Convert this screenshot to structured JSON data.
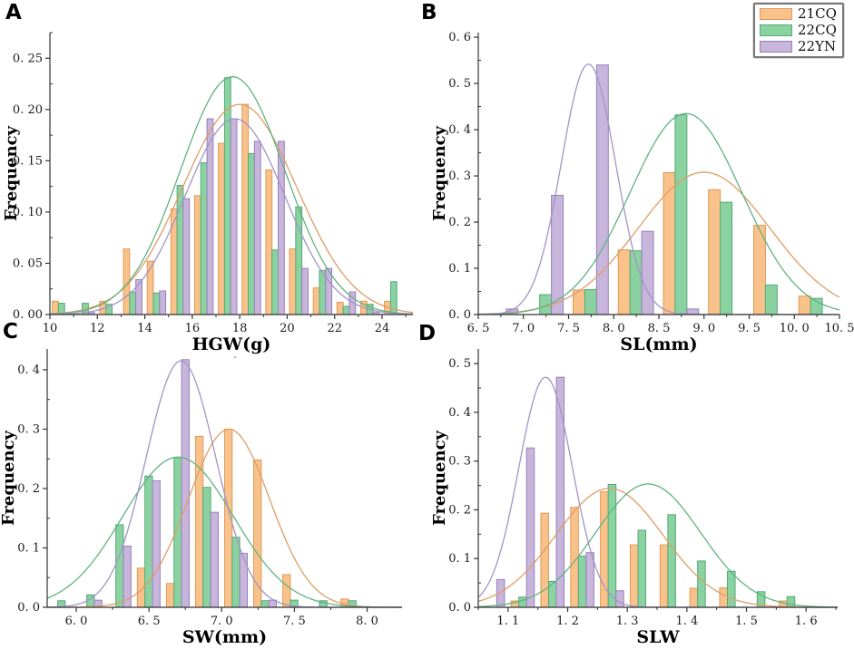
{
  "figure": {
    "background": "#ffffff"
  },
  "legend": {
    "entries": [
      {
        "label": "21CQ",
        "series": "21CQ"
      },
      {
        "label": "22CQ",
        "series": "22CQ"
      },
      {
        "label": "22YN",
        "series": "22YN"
      }
    ]
  },
  "colors": {
    "21CQ": {
      "fill": "#F9C28A",
      "stroke": "#DE9A5B",
      "line": "#E09C64"
    },
    "22CQ": {
      "fill": "#8AD3A1",
      "stroke": "#55A878",
      "line": "#61B282"
    },
    "22YN": {
      "fill": "#C8B5DC",
      "stroke": "#9680BA",
      "line": "#A294C8"
    },
    "axis": "#333333",
    "text": "#1a1a1a"
  },
  "chart_data": [
    {
      "type": "bar",
      "letter": "A",
      "xlabel": "HGW(g)",
      "xlabel_note": "-",
      "ylabel": "Frequency",
      "xlim": [
        10,
        25.3
      ],
      "ylim": [
        0,
        0.275
      ],
      "bin_width": 1,
      "bin_left_edges": [
        10,
        11,
        12,
        13,
        14,
        15,
        16,
        17,
        18,
        19,
        20,
        21,
        22,
        23,
        24
      ],
      "series": [
        {
          "name": "21CQ",
          "values": [
            0.013,
            0,
            0.013,
            0.064,
            0.052,
            0.103,
            0.116,
            0.167,
            0.205,
            0.141,
            0.064,
            0.026,
            0.012,
            0.013,
            0.013
          ]
        },
        {
          "name": "22CQ",
          "values": [
            0.011,
            0.011,
            0.01,
            0.022,
            0.021,
            0.126,
            0.148,
            0.231,
            0.157,
            0.063,
            0.105,
            0.043,
            0.008,
            0.01,
            0.032
          ]
        },
        {
          "name": "22YN",
          "values": [
            0,
            0.002,
            0,
            0.034,
            0.023,
            0.113,
            0.191,
            0.191,
            0.169,
            0.169,
            0.045,
            0.045,
            0.022,
            0.002,
            0
          ]
        }
      ],
      "curves": [
        {
          "name": "21CQ",
          "mean": 18.0,
          "sigma": 2.4,
          "peak": 0.205
        },
        {
          "name": "22CQ",
          "mean": 17.7,
          "sigma": 2.2,
          "peak": 0.232
        },
        {
          "name": "22YN",
          "mean": 17.8,
          "sigma": 2.1,
          "peak": 0.191
        }
      ],
      "xticks": {
        "values": [
          10,
          12,
          14,
          16,
          18,
          20,
          22,
          24
        ],
        "labels": [
          "10",
          "12",
          "14",
          "16",
          "18",
          "20",
          "22",
          "24"
        ]
      },
      "yticks": {
        "values": [
          0,
          0.05,
          0.1,
          0.15,
          0.2,
          0.25
        ],
        "labels": [
          "0. 00",
          "0. 05",
          "0. 10",
          "0. 15",
          "0. 20",
          "0. 25"
        ]
      }
    },
    {
      "type": "bar",
      "letter": "B",
      "xlabel": "SL(mm)",
      "xlabel_note": "",
      "ylabel": "Frequency",
      "xlim": [
        6.5,
        10.5
      ],
      "ylim": [
        0,
        0.61
      ],
      "bin_width": 0.5,
      "bin_left_edges": [
        6.5,
        7.0,
        7.5,
        8.0,
        8.5,
        9.0,
        9.5,
        10.0
      ],
      "series": [
        {
          "name": "21CQ",
          "values": [
            0,
            0,
            0.053,
            0.14,
            0.307,
            0.27,
            0.193,
            0.04
          ]
        },
        {
          "name": "22CQ",
          "values": [
            0,
            0.043,
            0.054,
            0.138,
            0.432,
            0.243,
            0.064,
            0.035
          ]
        },
        {
          "name": "22YN",
          "values": [
            0.012,
            0.258,
            0.54,
            0.18,
            0.012,
            0,
            0,
            0
          ]
        }
      ],
      "curves": [
        {
          "name": "21CQ",
          "mean": 9.0,
          "sigma": 0.73,
          "peak": 0.308
        },
        {
          "name": "22CQ",
          "mean": 8.8,
          "sigma": 0.62,
          "peak": 0.435
        },
        {
          "name": "22YN",
          "mean": 7.72,
          "sigma": 0.3,
          "peak": 0.542
        }
      ],
      "xticks": {
        "values": [
          6.5,
          7.0,
          7.5,
          8.0,
          8.5,
          9.0,
          9.5,
          10.0,
          10.5
        ],
        "labels": [
          "6. 5",
          "7. 0",
          "7. 5",
          "8. 0",
          "8. 5",
          "9. 0",
          "9. 5",
          "10. 0",
          "10. 5"
        ]
      },
      "yticks": {
        "values": [
          0,
          0.1,
          0.2,
          0.3,
          0.4,
          0.5,
          0.6
        ],
        "labels": [
          "0. 0",
          "0. 1",
          "0. 2",
          "0. 3",
          "0. 4",
          "0. 5",
          "0. 6"
        ]
      }
    },
    {
      "type": "bar",
      "letter": "C",
      "xlabel": "SW(mm)",
      "xlabel_note": "",
      "ylabel": "Frequency",
      "xlim": [
        5.8,
        8.24
      ],
      "ylim": [
        0,
        0.435
      ],
      "bin_width": 0.2,
      "bin_left_edges": [
        5.8,
        6.0,
        6.2,
        6.4,
        6.6,
        6.8,
        7.0,
        7.2,
        7.4,
        7.6,
        7.8
      ],
      "series": [
        {
          "name": "21CQ",
          "values": [
            0,
            0,
            0,
            0.066,
            0.04,
            0.288,
            0.3,
            0.248,
            0.055,
            0,
            0.014
          ]
        },
        {
          "name": "22CQ",
          "values": [
            0.011,
            0.021,
            0.139,
            0.221,
            0.252,
            0.202,
            0.118,
            0.011,
            0.012,
            0.011,
            0.011
          ]
        },
        {
          "name": "22YN",
          "values": [
            0,
            0.012,
            0.103,
            0.213,
            0.417,
            0.16,
            0.091,
            0.012,
            0,
            0,
            0
          ]
        }
      ],
      "curves": [
        {
          "name": "21CQ",
          "mean": 7.05,
          "sigma": 0.28,
          "peak": 0.3
        },
        {
          "name": "22CQ",
          "mean": 6.7,
          "sigma": 0.38,
          "peak": 0.253
        },
        {
          "name": "22YN",
          "mean": 6.72,
          "sigma": 0.24,
          "peak": 0.415
        }
      ],
      "xticks": {
        "values": [
          6.0,
          6.5,
          7.0,
          7.5,
          8.0
        ],
        "labels": [
          "6. 0",
          "6. 5",
          "7. 0",
          "7. 5",
          "8. 0"
        ]
      },
      "yticks": {
        "values": [
          0,
          0.1,
          0.2,
          0.3,
          0.4
        ],
        "labels": [
          "0. 0",
          "0. 1",
          "0. 2",
          "0. 3",
          "0. 4"
        ]
      }
    },
    {
      "type": "bar",
      "letter": "D",
      "xlabel": "SLW",
      "xlabel_note": "",
      "ylabel": "Frequency",
      "xlim": [
        1.05,
        1.653
      ],
      "ylim": [
        0,
        0.53
      ],
      "bin_width": 0.05,
      "bin_left_edges": [
        1.05,
        1.1,
        1.15,
        1.2,
        1.25,
        1.3,
        1.35,
        1.4,
        1.45,
        1.5,
        1.55
      ],
      "series": [
        {
          "name": "21CQ",
          "values": [
            0,
            0.013,
            0.193,
            0.205,
            0.237,
            0.128,
            0.128,
            0.039,
            0.04,
            0,
            0.013
          ]
        },
        {
          "name": "22CQ",
          "values": [
            0,
            0.021,
            0.053,
            0.105,
            0.252,
            0.158,
            0.19,
            0.095,
            0.074,
            0.032,
            0.022
          ]
        },
        {
          "name": "22YN",
          "values": [
            0.057,
            0.327,
            0.472,
            0.112,
            0.034,
            0,
            0,
            0,
            0,
            0,
            0
          ]
        }
      ],
      "curves": [
        {
          "name": "21CQ",
          "mean": 1.27,
          "sigma": 0.09,
          "peak": 0.244
        },
        {
          "name": "22CQ",
          "mean": 1.335,
          "sigma": 0.088,
          "peak": 0.253
        },
        {
          "name": "22YN",
          "mean": 1.163,
          "sigma": 0.045,
          "peak": 0.472
        }
      ],
      "xticks": {
        "values": [
          1.1,
          1.2,
          1.3,
          1.4,
          1.5,
          1.6
        ],
        "labels": [
          "1. 1",
          "1. 2",
          "1. 3",
          "1. 4",
          "1. 5",
          "1. 6"
        ]
      },
      "yticks": {
        "values": [
          0,
          0.1,
          0.2,
          0.3,
          0.4,
          0.5
        ],
        "labels": [
          "0. 0",
          "0. 1",
          "0. 2",
          "0. 3",
          "0. 4",
          "0. 5"
        ]
      }
    }
  ]
}
